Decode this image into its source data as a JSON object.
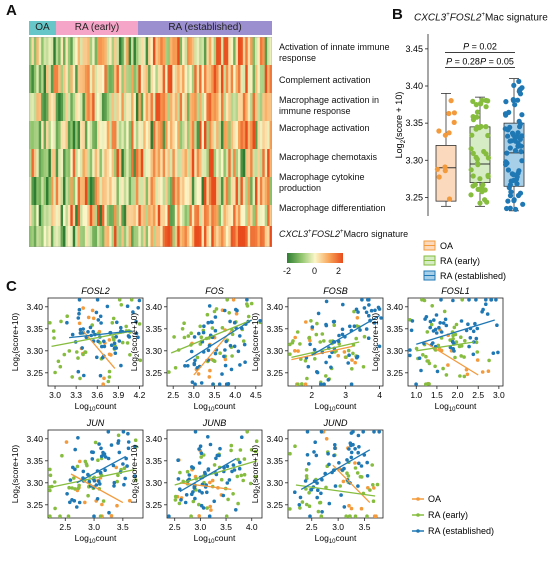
{
  "colors": {
    "oa": "#f39a3c",
    "ra_early": "#86bd3f",
    "ra_established": "#1f78b4",
    "oa_box": "#fbd9bd",
    "ra_early_box": "#d6ecc4",
    "ra_established_box": "#a8cfe8",
    "hm_low": "#2e8b3a",
    "hm_mid": "#fbf6c8",
    "hm_high": "#ef5a24",
    "grp_oa": "#67c7c8",
    "grp_early": "#f5a6c8",
    "grp_established": "#9c8fd0"
  },
  "panel_a": {
    "letter": "A",
    "groups": [
      "OA",
      "RA (early)",
      "RA (established)"
    ],
    "rows": [
      {
        "label": "Activation of innate immune response"
      },
      {
        "label": "Complement activation"
      },
      {
        "label": "Macrophage activation in immune response"
      },
      {
        "label": "Macrophage activation"
      },
      {
        "label": "Macrophage chemotaxis"
      },
      {
        "label": "Macrophage cytokine production"
      },
      {
        "label": "Macrophage differentiation"
      },
      {
        "label_prefix": "CXCL3",
        "label_sup1": "+",
        "label_mid": "FOSL2",
        "label_sup2": "+",
        "label_suffix": "Macro signature"
      }
    ],
    "colorbar": {
      "ticks": [
        "-2",
        "0",
        "2"
      ],
      "min": -2,
      "max": 2
    }
  },
  "panel_b": {
    "letter": "B",
    "title_prefix": "CXCL3",
    "title_sup1": "+",
    "title_mid": "FOSL2",
    "title_sup2": "+",
    "title_suffix": "Mac signature",
    "ylabel": "Log",
    "ylabel_sub": "2",
    "ylabel_suffix": "(score + 10)",
    "yticks": [
      "3.25",
      "3.30",
      "3.35",
      "3.40",
      "3.45"
    ],
    "ylim": [
      3.225,
      3.47
    ],
    "pvalues": [
      "P = 0.02",
      "P = 0.28",
      "P = 0.05"
    ],
    "legend": [
      "OA",
      "RA (early)",
      "RA (established)"
    ]
  },
  "panel_c": {
    "letter": "C",
    "xlabel": "Log",
    "xlabel_sub": "10",
    "xlabel_suffix": "count",
    "ylabel": "Log",
    "ylabel_sub": "2",
    "ylabel_suffix": "(score+10)",
    "yticks": [
      "3.25",
      "3.30",
      "3.35",
      "3.40"
    ],
    "legend": [
      "OA",
      "RA (early)",
      "RA (established)"
    ]
  },
  "chart_data": [
    {
      "type": "heatmap",
      "rows": [
        "Activation of innate immune response",
        "Complement activation",
        "Macrophage activation in immune response",
        "Macrophage activation",
        "Macrophage chemotaxis",
        "Macrophage cytokine production",
        "Macrophage differentiation",
        "CXCL3+FOSL2+Macro signature"
      ],
      "column_groups": [
        {
          "name": "OA",
          "columns": 10
        },
        {
          "name": "RA (early)",
          "columns": 40
        },
        {
          "name": "RA (established)",
          "columns": 50
        }
      ],
      "value_range": [
        -2,
        2
      ]
    },
    {
      "type": "box",
      "categories": [
        "OA",
        "RA (early)",
        "RA (established)"
      ],
      "boxes": [
        {
          "name": "OA",
          "q1": 3.245,
          "median": 3.29,
          "q3": 3.32,
          "whisker_low": 3.238,
          "whisker_high": 3.39
        },
        {
          "name": "RA (early)",
          "q1": 3.27,
          "median": 3.295,
          "q3": 3.345,
          "whisker_low": 3.238,
          "whisker_high": 3.385
        },
        {
          "name": "RA (established)",
          "q1": 3.265,
          "median": 3.31,
          "q3": 3.35,
          "whisker_low": 3.232,
          "whisker_high": 3.41
        }
      ],
      "comparisons": [
        {
          "pair": [
            "OA",
            "RA (established)"
          ],
          "p": "P = 0.02"
        },
        {
          "pair": [
            "OA",
            "RA (early)"
          ],
          "p": "P = 0.28"
        },
        {
          "pair": [
            "RA (early)",
            "RA (established)"
          ],
          "p": "P = 0.05"
        }
      ],
      "ylim": [
        3.225,
        3.47
      ]
    },
    {
      "type": "scatter",
      "panels": [
        {
          "title": "FOSL2",
          "xticks": [
            "3.0",
            "3.3",
            "3.6",
            "3.9",
            "4.2"
          ],
          "xlim": [
            2.9,
            4.25
          ],
          "ylim": [
            3.22,
            3.42
          ],
          "fits": {
            "OA": [
              [
                3.4,
                3.345
              ],
              [
                3.85,
                3.26
              ]
            ],
            "RA (early)": [
              [
                2.95,
                3.31
              ],
              [
                4.1,
                3.345
              ]
            ],
            "RA (established)": [
              [
                3.2,
                3.33
              ],
              [
                4.1,
                3.345
              ]
            ]
          }
        },
        {
          "title": "FOS",
          "xticks": [
            "2.5",
            "3.0",
            "3.5",
            "4.0",
            "4.5"
          ],
          "xlim": [
            2.35,
            4.65
          ],
          "ylim": [
            3.22,
            3.42
          ],
          "fits": {
            "OA": [
              [
                3.0,
                3.245
              ],
              [
                3.9,
                3.345
              ]
            ],
            "RA (early)": [
              [
                2.45,
                3.295
              ],
              [
                4.4,
                3.37
              ]
            ],
            "RA (established)": [
              [
                2.8,
                3.275
              ],
              [
                4.4,
                3.37
              ]
            ]
          }
        },
        {
          "title": "FOSB",
          "xticks": [
            "2",
            "3",
            "4"
          ],
          "xlim": [
            1.3,
            4.1
          ],
          "ylim": [
            3.22,
            3.42
          ],
          "fits": {
            "OA": [
              [
                1.4,
                3.28
              ],
              [
                3.2,
                3.31
              ]
            ],
            "RA (early)": [
              [
                1.4,
                3.285
              ],
              [
                3.4,
                3.32
              ]
            ],
            "RA (established)": [
              [
                2.0,
                3.29
              ],
              [
                4.0,
                3.38
              ]
            ]
          }
        },
        {
          "title": "FOSL1",
          "xticks": [
            "1.0",
            "1.5",
            "2.0",
            "2.5",
            "3.0"
          ],
          "xlim": [
            0.8,
            3.1
          ],
          "ylim": [
            3.22,
            3.42
          ],
          "fits": {
            "OA": [
              [
                1.2,
                3.32
              ],
              [
                2.5,
                3.245
              ]
            ],
            "RA (early)": [
              [
                1.0,
                3.3
              ],
              [
                2.4,
                3.32
              ]
            ],
            "RA (established)": [
              [
                1.0,
                3.315
              ],
              [
                2.9,
                3.37
              ]
            ]
          }
        },
        {
          "title": "JUN",
          "xticks": [
            "2.5",
            "3.0",
            "3.5"
          ],
          "xlim": [
            2.2,
            3.85
          ],
          "ylim": [
            3.22,
            3.42
          ],
          "fits": {
            "OA": [
              [
                2.6,
                3.32
              ],
              [
                3.5,
                3.255
              ]
            ],
            "RA (early)": [
              [
                2.25,
                3.29
              ],
              [
                3.7,
                3.33
              ]
            ],
            "RA (established)": [
              [
                2.7,
                3.3
              ],
              [
                3.55,
                3.36
              ]
            ]
          }
        },
        {
          "title": "JUNB",
          "xticks": [
            "2.5",
            "3.0",
            "3.5",
            "4.0"
          ],
          "xlim": [
            2.35,
            4.2
          ],
          "ylim": [
            3.22,
            3.42
          ],
          "fits": {
            "OA": [
              [
                2.6,
                3.3
              ],
              [
                3.6,
                3.285
              ]
            ],
            "RA (early)": [
              [
                2.5,
                3.295
              ],
              [
                4.1,
                3.35
              ]
            ],
            "RA (established)": [
              [
                2.6,
                3.28
              ],
              [
                3.7,
                3.355
              ]
            ]
          }
        },
        {
          "title": "JUND",
          "xticks": [
            "2.5",
            "3.0",
            "3.5"
          ],
          "xlim": [
            2.05,
            3.85
          ],
          "ylim": [
            3.22,
            3.42
          ],
          "fits": {
            "OA": [
              [
                2.9,
                3.34
              ],
              [
                3.6,
                3.255
              ]
            ],
            "RA (early)": [
              [
                2.2,
                3.295
              ],
              [
                3.7,
                3.27
              ]
            ],
            "RA (established)": [
              [
                2.3,
                3.285
              ],
              [
                3.6,
                3.375
              ]
            ]
          }
        }
      ]
    }
  ]
}
